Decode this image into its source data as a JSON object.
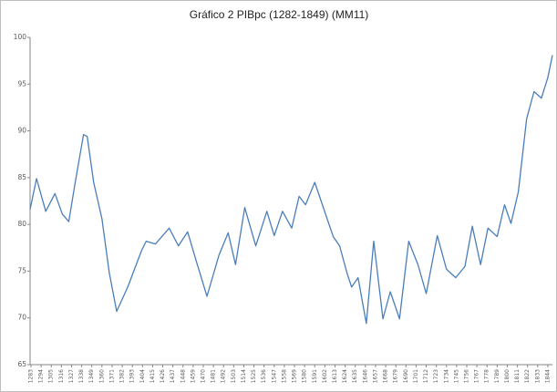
{
  "chart_data": {
    "type": "line",
    "title": "Gráfico 2 PIBpc (1282-1849) (MM11)",
    "x": [
      1282,
      1289,
      1299,
      1309,
      1317,
      1324,
      1331,
      1340,
      1344,
      1351,
      1360,
      1368,
      1376,
      1388,
      1403,
      1408,
      1418,
      1433,
      1443,
      1453,
      1462,
      1474,
      1487,
      1497,
      1505,
      1515,
      1527,
      1539,
      1547,
      1556,
      1566,
      1574,
      1581,
      1591,
      1601,
      1611,
      1618,
      1626,
      1631,
      1638,
      1647,
      1655,
      1665,
      1673,
      1683,
      1693,
      1703,
      1712,
      1724,
      1734,
      1744,
      1754,
      1762,
      1771,
      1779,
      1789,
      1797,
      1804,
      1812,
      1821,
      1829,
      1837,
      1844,
      1849
    ],
    "series": [
      {
        "name": "PIBpc",
        "color": "#4a7ebb",
        "values": [
          81.6,
          84.9,
          81.4,
          83.3,
          81.1,
          80.3,
          84.5,
          89.6,
          89.4,
          84.5,
          80.6,
          74.8,
          70.7,
          73.3,
          77.2,
          78.2,
          77.9,
          79.6,
          77.7,
          79.2,
          76.2,
          72.3,
          76.7,
          79.1,
          75.7,
          81.8,
          77.7,
          81.4,
          78.8,
          81.4,
          79.6,
          83.0,
          82.1,
          84.5,
          81.6,
          78.7,
          77.7,
          74.8,
          73.3,
          74.3,
          69.4,
          78.2,
          69.9,
          72.8,
          69.9,
          78.2,
          75.7,
          72.6,
          78.8,
          75.2,
          74.3,
          75.5,
          79.8,
          75.7,
          79.6,
          78.7,
          82.1,
          80.1,
          83.5,
          91.3,
          94.2,
          93.5,
          95.7,
          98.1
        ]
      }
    ],
    "xlim": [
      1282,
      1849
    ],
    "xticks": [
      1283,
      1294,
      1305,
      1316,
      1327,
      1338,
      1349,
      1360,
      1371,
      1382,
      1393,
      1404,
      1415,
      1426,
      1437,
      1448,
      1459,
      1470,
      1481,
      1492,
      1503,
      1514,
      1525,
      1536,
      1547,
      1558,
      1569,
      1580,
      1591,
      1602,
      1613,
      1624,
      1635,
      1646,
      1657,
      1668,
      1679,
      1690,
      1701,
      1712,
      1723,
      1734,
      1745,
      1756,
      1767,
      1778,
      1789,
      1800,
      1811,
      1822,
      1833,
      1844
    ],
    "ylim": [
      65,
      100
    ],
    "yticks": [
      65,
      70,
      75,
      80,
      85,
      90,
      95,
      100
    ],
    "grid": false
  }
}
